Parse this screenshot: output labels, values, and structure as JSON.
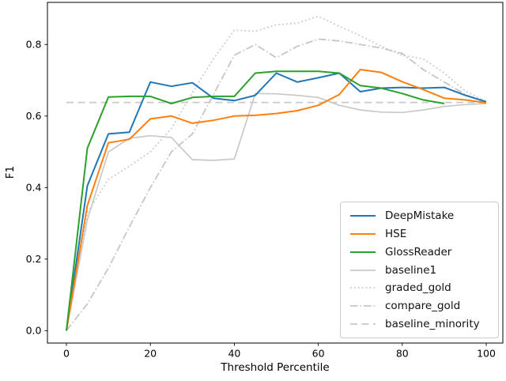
{
  "chart_data": {
    "type": "line",
    "title": "",
    "xlabel": "Threshold Percentile",
    "ylabel": "F1",
    "x_ticks": [
      0,
      20,
      40,
      60,
      80,
      100
    ],
    "y_ticks": [
      "0.0",
      "0.2",
      "0.4",
      "0.6",
      "0.8"
    ],
    "y_tick_values": [
      0.0,
      0.2,
      0.4,
      0.6,
      0.8
    ],
    "xlim": [
      -5,
      105
    ],
    "ylim": [
      -0.035,
      0.92
    ],
    "grid": false,
    "legend_position": "lower right",
    "series": [
      {
        "name": "baseline1",
        "color": "#c9c9c9",
        "linestyle": "solid",
        "width": 1.7,
        "x": [
          0,
          5,
          10,
          15,
          20,
          25,
          30,
          35,
          40,
          45,
          50,
          55,
          60,
          65,
          70,
          75,
          80,
          85,
          90,
          95,
          100
        ],
        "y": [
          0.0,
          0.31,
          0.5,
          0.538,
          0.545,
          0.54,
          0.478,
          0.476,
          0.48,
          0.663,
          0.662,
          0.658,
          0.652,
          0.63,
          0.617,
          0.611,
          0.61,
          0.617,
          0.627,
          0.632,
          0.635
        ]
      },
      {
        "name": "graded_gold",
        "color": "#c9c9c9",
        "linestyle": "dotted",
        "width": 1.8,
        "x": [
          0,
          5,
          10,
          15,
          20,
          25,
          30,
          35,
          40,
          45,
          50,
          55,
          60,
          65,
          70,
          75,
          80,
          85,
          90,
          95,
          100
        ],
        "y": [
          0.0,
          0.33,
          0.423,
          0.46,
          0.5,
          0.565,
          0.665,
          0.76,
          0.84,
          0.837,
          0.855,
          0.86,
          0.879,
          0.851,
          0.825,
          0.795,
          0.77,
          0.76,
          0.72,
          0.67,
          0.64
        ]
      },
      {
        "name": "compare_gold",
        "color": "#c6c6c6",
        "linestyle": "dashdot",
        "width": 1.8,
        "x": [
          0,
          5,
          10,
          15,
          20,
          25,
          30,
          35,
          40,
          45,
          50,
          55,
          60,
          65,
          70,
          75,
          80,
          85,
          90,
          95,
          100
        ],
        "y": [
          0.0,
          0.075,
          0.175,
          0.29,
          0.4,
          0.5,
          0.55,
          0.66,
          0.77,
          0.8,
          0.763,
          0.795,
          0.815,
          0.81,
          0.8,
          0.79,
          0.775,
          0.73,
          0.695,
          0.66,
          0.637
        ]
      },
      {
        "name": "baseline_minority",
        "color": "#c9c9c9",
        "linestyle": "dashed",
        "width": 1.7,
        "x": [
          0,
          100
        ],
        "y": [
          0.638,
          0.638
        ]
      },
      {
        "name": "DeepMistake",
        "color": "#1f77b4",
        "linestyle": "solid",
        "width": 2,
        "x": [
          0,
          5,
          10,
          15,
          20,
          25,
          30,
          35,
          40,
          45,
          50,
          55,
          60,
          65,
          70,
          75,
          80,
          85,
          90,
          95,
          100
        ],
        "y": [
          0.0,
          0.405,
          0.55,
          0.555,
          0.695,
          0.683,
          0.693,
          0.65,
          0.643,
          0.658,
          0.72,
          0.695,
          0.707,
          0.72,
          0.668,
          0.678,
          0.68,
          0.678,
          0.68,
          0.658,
          0.64
        ]
      },
      {
        "name": "HSE",
        "color": "#ff7f0e",
        "linestyle": "solid",
        "width": 2,
        "x": [
          0,
          5,
          10,
          15,
          20,
          25,
          30,
          35,
          40,
          45,
          50,
          55,
          60,
          65,
          70,
          75,
          80,
          85,
          90,
          95,
          100
        ],
        "y": [
          0.0,
          0.35,
          0.525,
          0.535,
          0.592,
          0.6,
          0.58,
          0.588,
          0.6,
          0.602,
          0.607,
          0.615,
          0.63,
          0.66,
          0.73,
          0.722,
          0.696,
          0.674,
          0.65,
          0.645,
          0.637
        ]
      },
      {
        "name": "GlossReader",
        "color": "#2ca02c",
        "linestyle": "solid",
        "width": 2,
        "x": [
          0,
          5,
          10,
          15,
          20,
          25,
          30,
          35,
          40,
          45,
          50,
          55,
          60,
          65,
          70,
          75,
          80,
          85,
          90
        ],
        "y": [
          0.0,
          0.51,
          0.653,
          0.655,
          0.655,
          0.635,
          0.652,
          0.655,
          0.655,
          0.72,
          0.725,
          0.725,
          0.725,
          0.72,
          0.685,
          0.678,
          0.663,
          0.645,
          0.635
        ]
      }
    ],
    "legend_order": [
      "DeepMistake",
      "HSE",
      "GlossReader",
      "baseline1",
      "graded_gold",
      "compare_gold",
      "baseline_minority"
    ]
  }
}
